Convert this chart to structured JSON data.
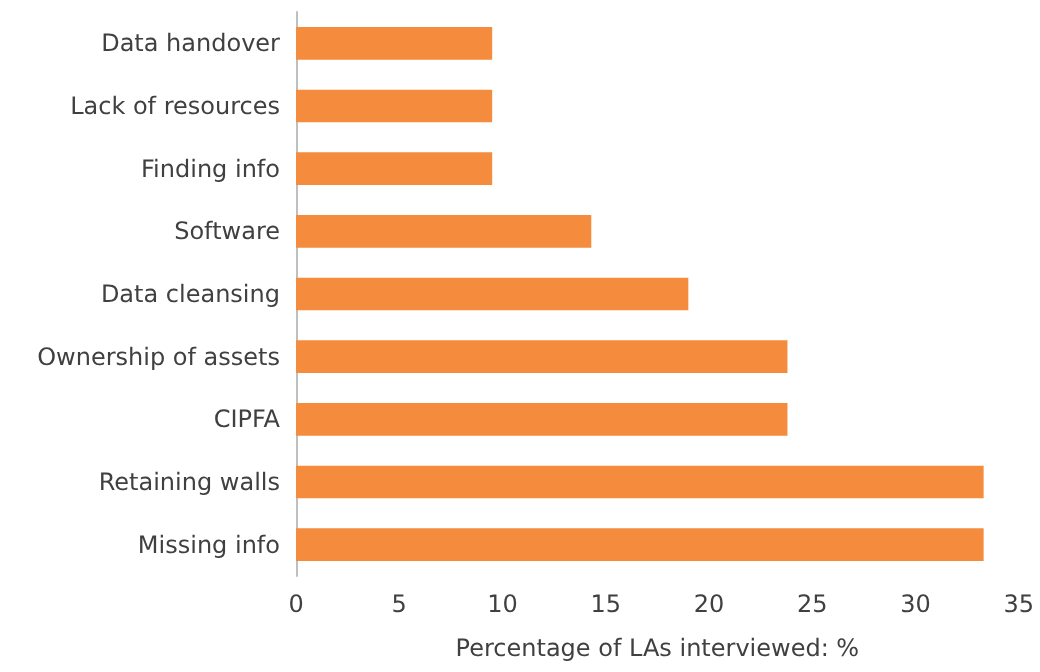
{
  "chart_data": {
    "type": "bar",
    "orientation": "horizontal",
    "xlabel": "Percentage of LAs interviewed: %",
    "categories": [
      "Data handover",
      "Lack of resources",
      "Finding info",
      "Software",
      "Data cleansing",
      "Ownership of assets",
      "CIPFA",
      "Retaining walls",
      "Missing info"
    ],
    "values": [
      9.5,
      9.5,
      9.5,
      14.3,
      19.0,
      23.8,
      23.8,
      33.3,
      33.3
    ],
    "color": "#f58b3c",
    "xlim": [
      0,
      35
    ],
    "xticks": [
      0,
      5,
      10,
      15,
      20,
      25,
      30,
      35
    ],
    "grid": false
  }
}
